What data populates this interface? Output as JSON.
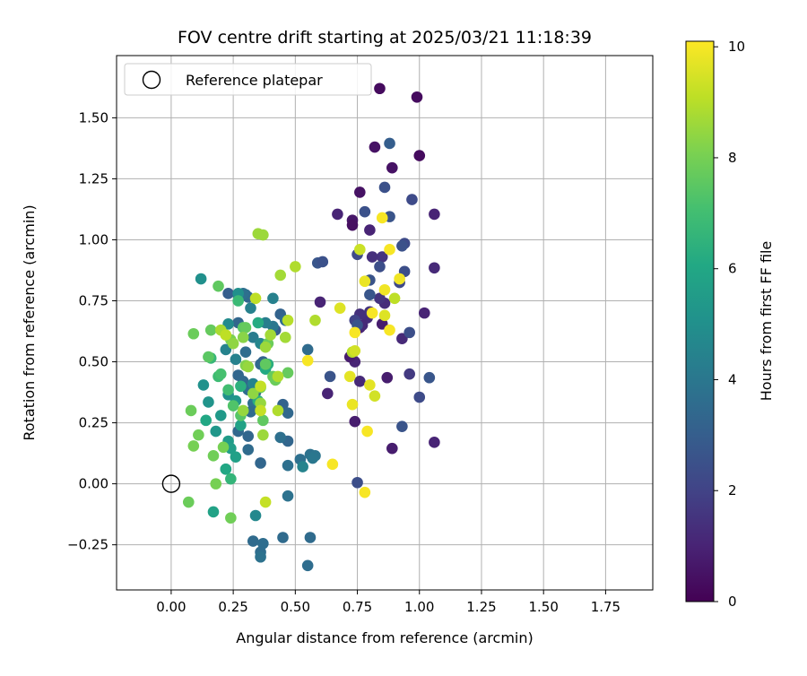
{
  "chart_data": {
    "type": "scatter",
    "title": "FOV centre drift starting at 2025/03/21 11:18:39",
    "xlabel": "Angular distance from reference (arcmin)",
    "ylabel": "Rotation from reference (arcmin)",
    "xlim": [
      -0.22,
      1.94
    ],
    "ylim": [
      -0.435,
      1.755
    ],
    "xticks": [
      0.0,
      0.25,
      0.5,
      0.75,
      1.0,
      1.25,
      1.5,
      1.75
    ],
    "xtick_labels": [
      "0.00",
      "0.25",
      "0.50",
      "0.75",
      "1.00",
      "1.25",
      "1.50",
      "1.75"
    ],
    "yticks": [
      -0.25,
      0.0,
      0.25,
      0.5,
      0.75,
      1.0,
      1.25,
      1.5
    ],
    "ytick_labels": [
      "−0.25",
      "0.00",
      "0.25",
      "0.50",
      "0.75",
      "1.00",
      "1.25",
      "1.50"
    ],
    "grid": true,
    "legend": {
      "placement": "top-left",
      "entries": [
        "Reference platepar"
      ]
    },
    "reference_point": {
      "x": 0.0,
      "y": 0.0,
      "label": "Reference platepar"
    },
    "colorbar": {
      "label": "Hours from first FF file",
      "colormap": "viridis",
      "range": [
        0,
        10.1
      ],
      "ticks": [
        0,
        2,
        4,
        6,
        8,
        10
      ],
      "tick_labels": [
        "0",
        "2",
        "4",
        "6",
        "8",
        "10"
      ]
    },
    "points": [
      {
        "x": 0.84,
        "y": 1.62,
        "h": 0.3
      },
      {
        "x": 0.99,
        "y": 1.585,
        "h": 0.3
      },
      {
        "x": 0.82,
        "y": 1.38,
        "h": 0.5
      },
      {
        "x": 1.0,
        "y": 1.345,
        "h": 0.3
      },
      {
        "x": 0.89,
        "y": 1.295,
        "h": 0.5
      },
      {
        "x": 0.76,
        "y": 1.195,
        "h": 0.5
      },
      {
        "x": 0.67,
        "y": 1.105,
        "h": 1.0
      },
      {
        "x": 0.73,
        "y": 1.08,
        "h": 0.6
      },
      {
        "x": 0.73,
        "y": 1.06,
        "h": 0.4
      },
      {
        "x": 0.8,
        "y": 1.04,
        "h": 1.0
      },
      {
        "x": 1.06,
        "y": 1.105,
        "h": 1.0
      },
      {
        "x": 1.02,
        "y": 0.7,
        "h": 1.0
      },
      {
        "x": 1.06,
        "y": 0.885,
        "h": 1.2
      },
      {
        "x": 0.87,
        "y": 0.435,
        "h": 0.8
      },
      {
        "x": 0.89,
        "y": 0.145,
        "h": 0.8
      },
      {
        "x": 1.06,
        "y": 0.17,
        "h": 1.0
      },
      {
        "x": 0.74,
        "y": 0.5,
        "h": 1.0
      },
      {
        "x": 0.72,
        "y": 0.52,
        "h": 0.8
      },
      {
        "x": 0.74,
        "y": 0.255,
        "h": 0.8
      },
      {
        "x": 0.63,
        "y": 0.37,
        "h": 1.0
      },
      {
        "x": 0.6,
        "y": 0.745,
        "h": 1.0
      },
      {
        "x": 0.76,
        "y": 0.42,
        "h": 1.2
      },
      {
        "x": 0.85,
        "y": 0.655,
        "h": 0.8
      },
      {
        "x": 0.79,
        "y": 0.68,
        "h": 1.3
      },
      {
        "x": 0.93,
        "y": 0.595,
        "h": 1.2
      },
      {
        "x": 0.76,
        "y": 0.64,
        "h": 1.0
      },
      {
        "x": 0.77,
        "y": 0.65,
        "h": 1.2
      },
      {
        "x": 0.86,
        "y": 0.74,
        "h": 1.3
      },
      {
        "x": 0.84,
        "y": 0.76,
        "h": 1.5
      },
      {
        "x": 0.8,
        "y": 0.705,
        "h": 1.5
      },
      {
        "x": 0.76,
        "y": 0.695,
        "h": 1.4
      },
      {
        "x": 0.85,
        "y": 0.93,
        "h": 1.5
      },
      {
        "x": 0.81,
        "y": 0.93,
        "h": 1.4
      },
      {
        "x": 0.96,
        "y": 0.45,
        "h": 1.7
      },
      {
        "x": 0.88,
        "y": 1.395,
        "h": 3.0
      },
      {
        "x": 0.86,
        "y": 1.215,
        "h": 2.5
      },
      {
        "x": 0.97,
        "y": 1.165,
        "h": 2.3
      },
      {
        "x": 0.78,
        "y": 1.115,
        "h": 2.5
      },
      {
        "x": 0.88,
        "y": 1.095,
        "h": 2.6
      },
      {
        "x": 0.75,
        "y": 0.94,
        "h": 2.3
      },
      {
        "x": 0.84,
        "y": 0.89,
        "h": 2.4
      },
      {
        "x": 0.94,
        "y": 0.985,
        "h": 2.3
      },
      {
        "x": 0.93,
        "y": 0.975,
        "h": 2.5
      },
      {
        "x": 0.94,
        "y": 0.87,
        "h": 2.4
      },
      {
        "x": 0.8,
        "y": 0.835,
        "h": 2.6
      },
      {
        "x": 0.92,
        "y": 0.825,
        "h": 2.2
      },
      {
        "x": 0.8,
        "y": 0.775,
        "h": 2.7
      },
      {
        "x": 0.59,
        "y": 0.905,
        "h": 2.7
      },
      {
        "x": 0.61,
        "y": 0.91,
        "h": 2.5
      },
      {
        "x": 0.96,
        "y": 0.62,
        "h": 2.4
      },
      {
        "x": 0.93,
        "y": 0.235,
        "h": 2.6
      },
      {
        "x": 1.0,
        "y": 0.355,
        "h": 2.3
      },
      {
        "x": 1.04,
        "y": 0.435,
        "h": 2.7
      },
      {
        "x": 0.75,
        "y": 0.005,
        "h": 2.4
      },
      {
        "x": 0.64,
        "y": 0.44,
        "h": 2.6
      },
      {
        "x": 0.74,
        "y": 0.67,
        "h": 2.0
      },
      {
        "x": 0.75,
        "y": 0.65,
        "h": 2.6
      },
      {
        "x": 0.23,
        "y": 0.78,
        "h": 3.0
      },
      {
        "x": 0.27,
        "y": 0.775,
        "h": 3.2
      },
      {
        "x": 0.31,
        "y": 0.765,
        "h": 3.3
      },
      {
        "x": 0.3,
        "y": 0.775,
        "h": 3.5
      },
      {
        "x": 0.29,
        "y": 0.78,
        "h": 3.7
      },
      {
        "x": 0.27,
        "y": 0.66,
        "h": 3.3
      },
      {
        "x": 0.42,
        "y": 0.63,
        "h": 3.0
      },
      {
        "x": 0.44,
        "y": 0.695,
        "h": 3.2
      },
      {
        "x": 0.46,
        "y": 0.67,
        "h": 3.6
      },
      {
        "x": 0.3,
        "y": 0.54,
        "h": 3.6
      },
      {
        "x": 0.37,
        "y": 0.5,
        "h": 3.2
      },
      {
        "x": 0.36,
        "y": 0.49,
        "h": 3.4
      },
      {
        "x": 0.27,
        "y": 0.445,
        "h": 3.3
      },
      {
        "x": 0.29,
        "y": 0.42,
        "h": 3.4
      },
      {
        "x": 0.31,
        "y": 0.385,
        "h": 3.6
      },
      {
        "x": 0.34,
        "y": 0.375,
        "h": 3.2
      },
      {
        "x": 0.33,
        "y": 0.33,
        "h": 3.7
      },
      {
        "x": 0.32,
        "y": 0.295,
        "h": 3.5
      },
      {
        "x": 0.27,
        "y": 0.215,
        "h": 3.4
      },
      {
        "x": 0.31,
        "y": 0.195,
        "h": 3.3
      },
      {
        "x": 0.31,
        "y": 0.14,
        "h": 3.5
      },
      {
        "x": 0.36,
        "y": 0.085,
        "h": 3.3
      },
      {
        "x": 0.45,
        "y": 0.325,
        "h": 3.2
      },
      {
        "x": 0.47,
        "y": 0.29,
        "h": 3.4
      },
      {
        "x": 0.47,
        "y": 0.175,
        "h": 3.3
      },
      {
        "x": 0.44,
        "y": 0.19,
        "h": 3.7
      },
      {
        "x": 0.47,
        "y": 0.075,
        "h": 3.7
      },
      {
        "x": 0.52,
        "y": 0.1,
        "h": 3.7
      },
      {
        "x": 0.55,
        "y": 0.55,
        "h": 3.5
      },
      {
        "x": 0.56,
        "y": 0.12,
        "h": 3.8
      },
      {
        "x": 0.58,
        "y": 0.115,
        "h": 3.9
      },
      {
        "x": 0.57,
        "y": 0.105,
        "h": 4.0
      },
      {
        "x": 0.47,
        "y": -0.05,
        "h": 3.8
      },
      {
        "x": 0.45,
        "y": -0.22,
        "h": 3.5
      },
      {
        "x": 0.56,
        "y": -0.22,
        "h": 3.5
      },
      {
        "x": 0.55,
        "y": -0.335,
        "h": 3.6
      },
      {
        "x": 0.33,
        "y": -0.235,
        "h": 3.5
      },
      {
        "x": 0.37,
        "y": -0.245,
        "h": 3.6
      },
      {
        "x": 0.36,
        "y": -0.28,
        "h": 3.6
      },
      {
        "x": 0.36,
        "y": -0.3,
        "h": 3.8
      },
      {
        "x": 0.33,
        "y": 0.6,
        "h": 4.2
      },
      {
        "x": 0.41,
        "y": 0.645,
        "h": 4.0
      },
      {
        "x": 0.32,
        "y": 0.72,
        "h": 4.4
      },
      {
        "x": 0.41,
        "y": 0.76,
        "h": 4.4
      },
      {
        "x": 0.38,
        "y": 0.66,
        "h": 4.3
      },
      {
        "x": 0.22,
        "y": 0.55,
        "h": 4.5
      },
      {
        "x": 0.26,
        "y": 0.51,
        "h": 4.4
      },
      {
        "x": 0.33,
        "y": 0.41,
        "h": 4.5
      },
      {
        "x": 0.36,
        "y": 0.575,
        "h": 4.6
      },
      {
        "x": 0.53,
        "y": 0.07,
        "h": 4.5
      },
      {
        "x": 0.22,
        "y": 0.06,
        "h": 4.6
      },
      {
        "x": 0.34,
        "y": -0.13,
        "h": 4.7
      },
      {
        "x": 0.12,
        "y": 0.84,
        "h": 5.0
      },
      {
        "x": 0.23,
        "y": 0.655,
        "h": 4.8
      },
      {
        "x": 0.27,
        "y": 0.78,
        "h": 5.0
      },
      {
        "x": 0.13,
        "y": 0.405,
        "h": 5.1
      },
      {
        "x": 0.23,
        "y": 0.365,
        "h": 5.0
      },
      {
        "x": 0.26,
        "y": 0.34,
        "h": 5.3
      },
      {
        "x": 0.15,
        "y": 0.335,
        "h": 5.2
      },
      {
        "x": 0.2,
        "y": 0.28,
        "h": 5.4
      },
      {
        "x": 0.18,
        "y": 0.215,
        "h": 5.3
      },
      {
        "x": 0.23,
        "y": 0.175,
        "h": 5.5
      },
      {
        "x": 0.24,
        "y": 0.145,
        "h": 5.6
      },
      {
        "x": 0.26,
        "y": 0.11,
        "h": 5.7
      },
      {
        "x": 0.28,
        "y": 0.24,
        "h": 5.8
      },
      {
        "x": 0.17,
        "y": -0.115,
        "h": 5.8
      },
      {
        "x": 0.22,
        "y": 0.06,
        "h": 6.0
      },
      {
        "x": 0.14,
        "y": 0.26,
        "h": 6.0
      },
      {
        "x": 0.35,
        "y": 0.66,
        "h": 6.2
      },
      {
        "x": 0.38,
        "y": 0.47,
        "h": 6.1
      },
      {
        "x": 0.39,
        "y": 0.49,
        "h": 6.3
      },
      {
        "x": 0.35,
        "y": 0.34,
        "h": 6.3
      },
      {
        "x": 0.28,
        "y": 0.4,
        "h": 6.4
      },
      {
        "x": 0.24,
        "y": 0.02,
        "h": 6.6
      },
      {
        "x": 0.27,
        "y": 0.75,
        "h": 6.8
      },
      {
        "x": 0.16,
        "y": 0.515,
        "h": 6.7
      },
      {
        "x": 0.19,
        "y": 0.44,
        "h": 6.9
      },
      {
        "x": 0.2,
        "y": 0.45,
        "h": 7.1
      },
      {
        "x": 0.23,
        "y": 0.385,
        "h": 7.0
      },
      {
        "x": 0.25,
        "y": 0.32,
        "h": 7.3
      },
      {
        "x": 0.28,
        "y": 0.28,
        "h": 7.4
      },
      {
        "x": 0.29,
        "y": 0.64,
        "h": 7.5
      },
      {
        "x": 0.3,
        "y": 0.64,
        "h": 7.7
      },
      {
        "x": 0.37,
        "y": 0.26,
        "h": 7.6
      },
      {
        "x": 0.41,
        "y": 0.44,
        "h": 7.7
      },
      {
        "x": 0.42,
        "y": 0.425,
        "h": 7.8
      },
      {
        "x": 0.38,
        "y": 0.49,
        "h": 7.6
      },
      {
        "x": 0.39,
        "y": 0.575,
        "h": 7.8
      },
      {
        "x": 0.36,
        "y": 0.395,
        "h": 7.9
      },
      {
        "x": 0.47,
        "y": 0.455,
        "h": 7.7
      },
      {
        "x": 0.09,
        "y": 0.615,
        "h": 7.8
      },
      {
        "x": 0.16,
        "y": 0.63,
        "h": 7.7
      },
      {
        "x": 0.19,
        "y": 0.81,
        "h": 7.6
      },
      {
        "x": 0.15,
        "y": 0.52,
        "h": 7.5
      },
      {
        "x": 0.08,
        "y": 0.3,
        "h": 7.8
      },
      {
        "x": 0.11,
        "y": 0.2,
        "h": 7.9
      },
      {
        "x": 0.09,
        "y": 0.155,
        "h": 8.0
      },
      {
        "x": 0.17,
        "y": 0.115,
        "h": 7.9
      },
      {
        "x": 0.21,
        "y": 0.15,
        "h": 8.0
      },
      {
        "x": 0.07,
        "y": -0.075,
        "h": 7.8
      },
      {
        "x": 0.18,
        "y": -0.0,
        "h": 8.0
      },
      {
        "x": 0.24,
        "y": -0.14,
        "h": 7.9
      },
      {
        "x": 0.24,
        "y": 0.59,
        "h": 8.1
      },
      {
        "x": 0.29,
        "y": 0.6,
        "h": 8.3
      },
      {
        "x": 0.3,
        "y": 0.485,
        "h": 8.2
      },
      {
        "x": 0.25,
        "y": 0.575,
        "h": 8.4
      },
      {
        "x": 0.35,
        "y": 1.025,
        "h": 8.6
      },
      {
        "x": 0.37,
        "y": 1.02,
        "h": 8.6
      },
      {
        "x": 0.31,
        "y": 0.48,
        "h": 8.5
      },
      {
        "x": 0.33,
        "y": 0.37,
        "h": 8.4
      },
      {
        "x": 0.37,
        "y": 0.2,
        "h": 8.6
      },
      {
        "x": 0.36,
        "y": 0.33,
        "h": 8.5
      },
      {
        "x": 0.38,
        "y": 0.56,
        "h": 8.6
      },
      {
        "x": 0.4,
        "y": 0.61,
        "h": 8.7
      },
      {
        "x": 0.46,
        "y": 0.6,
        "h": 8.7
      },
      {
        "x": 0.43,
        "y": 0.3,
        "h": 8.9
      },
      {
        "x": 0.44,
        "y": 0.855,
        "h": 8.7
      },
      {
        "x": 0.5,
        "y": 0.89,
        "h": 8.9
      },
      {
        "x": 0.29,
        "y": 0.3,
        "h": 8.5
      },
      {
        "x": 0.2,
        "y": 0.63,
        "h": 8.8
      },
      {
        "x": 0.58,
        "y": 0.67,
        "h": 8.9
      },
      {
        "x": 0.47,
        "y": 0.67,
        "h": 9.0
      },
      {
        "x": 0.43,
        "y": 0.44,
        "h": 8.9
      },
      {
        "x": 0.73,
        "y": 0.54,
        "h": 9.0
      },
      {
        "x": 0.9,
        "y": 0.76,
        "h": 9.1
      },
      {
        "x": 0.34,
        "y": 0.76,
        "h": 9.1
      },
      {
        "x": 0.22,
        "y": 0.61,
        "h": 9.1
      },
      {
        "x": 0.36,
        "y": 0.4,
        "h": 9.2
      },
      {
        "x": 0.36,
        "y": 0.3,
        "h": 9.2
      },
      {
        "x": 0.38,
        "y": -0.075,
        "h": 9.2
      },
      {
        "x": 0.76,
        "y": 0.96,
        "h": 9.3
      },
      {
        "x": 0.74,
        "y": 0.545,
        "h": 9.4
      },
      {
        "x": 0.82,
        "y": 0.36,
        "h": 9.4
      },
      {
        "x": 0.68,
        "y": 0.72,
        "h": 9.6
      },
      {
        "x": 0.86,
        "y": 0.69,
        "h": 9.6
      },
      {
        "x": 0.8,
        "y": 0.405,
        "h": 9.7
      },
      {
        "x": 0.72,
        "y": 0.44,
        "h": 9.7
      },
      {
        "x": 0.73,
        "y": 0.325,
        "h": 9.8
      },
      {
        "x": 0.78,
        "y": 0.83,
        "h": 9.8
      },
      {
        "x": 0.86,
        "y": 0.795,
        "h": 9.9
      },
      {
        "x": 0.92,
        "y": 0.84,
        "h": 9.9
      },
      {
        "x": 0.88,
        "y": 0.96,
        "h": 10.0
      },
      {
        "x": 0.85,
        "y": 1.09,
        "h": 10.0
      },
      {
        "x": 0.74,
        "y": 0.62,
        "h": 10.0
      },
      {
        "x": 0.81,
        "y": 0.7,
        "h": 10.0
      },
      {
        "x": 0.88,
        "y": 0.63,
        "h": 10.0
      },
      {
        "x": 0.55,
        "y": 0.505,
        "h": 10.0
      },
      {
        "x": 0.65,
        "y": 0.08,
        "h": 10.0
      },
      {
        "x": 0.78,
        "y": -0.035,
        "h": 10.0
      },
      {
        "x": 0.79,
        "y": 0.215,
        "h": 10.0
      }
    ]
  }
}
